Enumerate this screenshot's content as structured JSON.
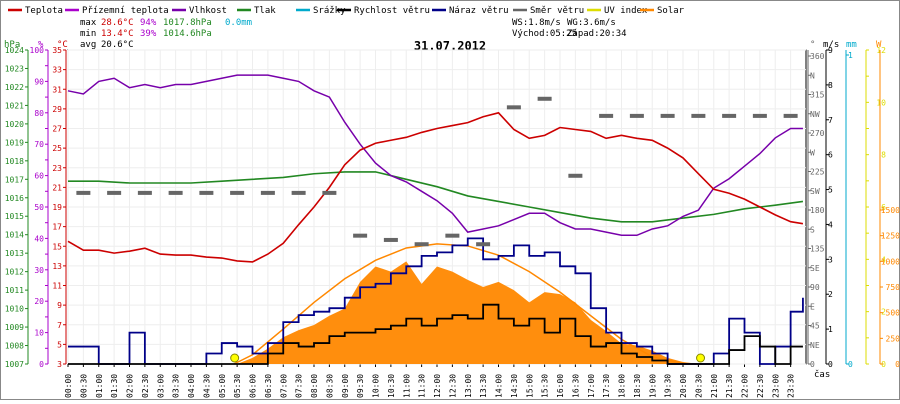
{
  "chart_data": {
    "type": "line",
    "title": "31.07.2012",
    "legend": [
      {
        "name": "Teplota",
        "color": "#cc0000"
      },
      {
        "name": "Přízemní teplota",
        "color": "#aa00cc"
      },
      {
        "name": "Vlhkost",
        "color": "#7700aa"
      },
      {
        "name": "Tlak",
        "color": "#228822"
      },
      {
        "name": "Srážky",
        "color": "#00aacc"
      },
      {
        "name": "Rychlost větru",
        "color": "#000000"
      },
      {
        "name": "Náraz větru",
        "color": "#000088"
      },
      {
        "name": "Směr větru",
        "color": "#666666"
      },
      {
        "name": "UV index",
        "color": "#dddd00"
      },
      {
        "name": "Solar",
        "color": "#ff8800"
      }
    ],
    "stats": {
      "max_label": "max",
      "max_temp": "28.6°C",
      "max_hum": "94%",
      "max_press": "1017.8hPa",
      "rain": "0.0mm",
      "min_label": "min",
      "min_temp": "13.4°C",
      "min_hum": "39%",
      "min_press": "1014.6hPa",
      "avg_label": "avg",
      "avg_temp": "20.6°C",
      "ws": "WS:1.8m/s",
      "wg": "WG:3.6m/s",
      "sunrise": "Východ:05:25",
      "sunset": "Západ:20:34"
    },
    "axes": {
      "hpa_unit": "hPa",
      "pct_unit": "%",
      "c_unit": "°C",
      "deg_unit": "°",
      "ms_unit": "m/s",
      "mm_unit": "mm",
      "w_unit": "W",
      "x_unit": "čas",
      "hpa_ticks": [
        "1024",
        "1023",
        "1022",
        "1021",
        "1020",
        "1019",
        "1018",
        "1017",
        "1016",
        "1015",
        "1014",
        "1013",
        "1012",
        "1011",
        "1010",
        "1009",
        "1008",
        "1007"
      ],
      "pct_ticks": [
        "100",
        "",
        "90",
        "",
        "80",
        "",
        "70",
        "",
        "60",
        "",
        "50",
        "",
        "40",
        "",
        "30",
        "",
        "20",
        "",
        "10",
        "",
        "0"
      ],
      "c_ticks": [
        "35",
        "33",
        "31",
        "29",
        "27",
        "25",
        "23",
        "21",
        "19",
        "17",
        "15",
        "13",
        "11",
        "9",
        "7",
        "5",
        "3"
      ],
      "dir_ticks": [
        "360",
        "N",
        "315",
        "NW",
        "270",
        "W",
        "225",
        "SW",
        "180",
        "S",
        "135",
        "SE",
        "90",
        "E",
        "45",
        "NE",
        "0"
      ],
      "ms_ticks": [
        "9",
        "8",
        "7",
        "6",
        "5",
        "4",
        "3",
        "2",
        "1",
        "0"
      ],
      "mm_ticks": [
        "1",
        "0"
      ],
      "uv_ticks": [
        "12",
        "",
        "10",
        "",
        "8",
        "",
        "6",
        "",
        "4",
        "",
        "2",
        "",
        "0"
      ],
      "w_ticks": [
        "1500",
        "1250",
        "1000",
        "750",
        "500",
        "250",
        "0"
      ],
      "x_ticks": [
        "00:00",
        "00:30",
        "01:00",
        "01:30",
        "02:00",
        "02:30",
        "03:00",
        "03:30",
        "04:00",
        "04:30",
        "05:00",
        "05:30",
        "06:00",
        "06:30",
        "07:00",
        "07:30",
        "08:00",
        "08:30",
        "09:00",
        "09:30",
        "10:00",
        "10:30",
        "11:00",
        "11:30",
        "12:00",
        "12:30",
        "13:00",
        "13:30",
        "14:00",
        "14:30",
        "15:00",
        "15:30",
        "16:00",
        "16:30",
        "17:00",
        "17:30",
        "18:00",
        "18:30",
        "19:00",
        "19:30",
        "20:00",
        "20:30",
        "21:00",
        "21:30",
        "22:00",
        "22:30",
        "23:00",
        "23:30"
      ],
      "temp_range": [
        3,
        35
      ],
      "hum_range": [
        0,
        100
      ],
      "press_range": [
        1007,
        1024
      ],
      "dir_range": [
        0,
        360
      ],
      "wind_range": [
        0,
        9
      ],
      "solar_range": [
        0,
        1500
      ]
    },
    "series": {
      "temperature": {
        "x": [
          0,
          0.5,
          1,
          1.5,
          2,
          2.5,
          3,
          3.5,
          4,
          4.5,
          5,
          5.5,
          6,
          6.5,
          7,
          7.5,
          8,
          8.5,
          9,
          9.5,
          10,
          10.5,
          11,
          11.5,
          12,
          12.5,
          13,
          13.5,
          14,
          14.5,
          15,
          15.5,
          16,
          16.5,
          17,
          17.5,
          18,
          18.5,
          19,
          19.5,
          20,
          20.5,
          21,
          21.5,
          22,
          22.5,
          23,
          23.5,
          23.9
        ],
        "values": [
          15.5,
          14.6,
          14.6,
          14.3,
          14.5,
          14.8,
          14.2,
          14.1,
          14.1,
          13.9,
          13.8,
          13.5,
          13.4,
          14.2,
          15.3,
          17.2,
          19.0,
          21.0,
          23.3,
          24.8,
          25.5,
          25.8,
          26.1,
          26.6,
          27.0,
          27.3,
          27.6,
          28.2,
          28.6,
          26.9,
          26.0,
          26.3,
          27.1,
          26.9,
          26.7,
          26.0,
          26.3,
          26.0,
          25.8,
          25.0,
          24.0,
          22.4,
          20.8,
          20.4,
          19.8,
          19.0,
          18.2,
          17.5,
          17.3
        ]
      },
      "humidity": {
        "x": [
          0,
          0.5,
          1,
          1.5,
          2,
          2.5,
          3,
          3.5,
          4,
          4.5,
          5,
          5.5,
          6,
          6.5,
          7,
          7.5,
          8,
          8.5,
          9,
          9.5,
          10,
          10.5,
          11,
          11.5,
          12,
          12.5,
          13,
          13.5,
          14,
          14.5,
          15,
          15.5,
          16,
          16.5,
          17,
          17.5,
          18,
          18.5,
          19,
          19.5,
          20,
          20.5,
          21,
          21.5,
          22,
          22.5,
          23,
          23.5,
          23.9
        ],
        "values": [
          87,
          86,
          90,
          91,
          88,
          89,
          88,
          89,
          89,
          90,
          91,
          92,
          92,
          92,
          91,
          90,
          87,
          85,
          77,
          70,
          64,
          60,
          58,
          55,
          52,
          48,
          42,
          43,
          44,
          46,
          48,
          48,
          45,
          43,
          43,
          42,
          41,
          41,
          43,
          44,
          47,
          49,
          56,
          59,
          63,
          67,
          72,
          75,
          75
        ]
      },
      "pressure": {
        "x": [
          0,
          1,
          2,
          3,
          4,
          5,
          6,
          7,
          8,
          9,
          10,
          11,
          12,
          13,
          14,
          15,
          16,
          17,
          18,
          19,
          20,
          21,
          22,
          23,
          23.9
        ],
        "values": [
          1016.9,
          1016.9,
          1016.8,
          1016.8,
          1016.8,
          1016.9,
          1017.0,
          1017.1,
          1017.3,
          1017.4,
          1017.4,
          1017.0,
          1016.6,
          1016.1,
          1015.8,
          1015.5,
          1015.2,
          1014.9,
          1014.7,
          1014.7,
          1014.9,
          1015.1,
          1015.4,
          1015.6,
          1015.8
        ]
      },
      "wind_speed": {
        "x": [
          0,
          1,
          2,
          3,
          4,
          5,
          5.5,
          6,
          6.5,
          7,
          7.5,
          8,
          8.5,
          9,
          9.5,
          10,
          10.5,
          11,
          11.5,
          12,
          12.5,
          13,
          13.5,
          14,
          14.5,
          15,
          15.5,
          16,
          16.5,
          17,
          17.5,
          18,
          18.5,
          19,
          19.5,
          20,
          20.5,
          21,
          21.5,
          22,
          22.5,
          23,
          23.5,
          23.9
        ],
        "values": [
          0,
          0,
          0,
          0,
          0,
          0,
          0,
          0,
          0.3,
          0.6,
          0.5,
          0.6,
          0.8,
          0.9,
          0.9,
          1.0,
          1.1,
          1.3,
          1.1,
          1.3,
          1.4,
          1.3,
          1.7,
          1.3,
          1.1,
          1.3,
          0.9,
          1.3,
          0.8,
          0.5,
          0.6,
          0.3,
          0.2,
          0.1,
          0,
          0,
          0,
          0,
          0.4,
          0.8,
          0.5,
          0,
          0.5,
          0.5
        ]
      },
      "wind_gust": {
        "x": [
          0,
          0.5,
          1,
          1.5,
          2,
          2.5,
          3,
          3.5,
          4,
          4.5,
          5,
          5.5,
          6,
          6.5,
          7,
          7.5,
          8,
          8.5,
          9,
          9.5,
          10,
          10.5,
          11,
          11.5,
          12,
          12.5,
          13,
          13.5,
          14,
          14.5,
          15,
          15.5,
          16,
          16.5,
          17,
          17.5,
          18,
          18.5,
          19,
          19.5,
          20,
          20.5,
          21,
          21.5,
          22,
          22.5,
          23,
          23.5,
          23.9
        ],
        "values": [
          0.5,
          0.5,
          0,
          0,
          0.9,
          0,
          0,
          0,
          0,
          0.3,
          0.6,
          0.5,
          0.3,
          0.6,
          1.2,
          1.4,
          1.5,
          1.6,
          1.9,
          2.2,
          2.3,
          2.6,
          2.8,
          3.1,
          3.2,
          3.4,
          3.6,
          3.0,
          3.1,
          3.4,
          3.1,
          3.2,
          2.8,
          2.6,
          1.6,
          0.9,
          0.6,
          0.5,
          0.3,
          0,
          0,
          0,
          0.3,
          1.3,
          0.9,
          0,
          0.5,
          1.5,
          1.9
        ]
      },
      "wind_direction": {
        "x": [
          0.5,
          1.5,
          2.5,
          3.5,
          4.5,
          5.5,
          6.5,
          7.5,
          8.5,
          9.5,
          10.5,
          11.5,
          12.5,
          13.5,
          14.5,
          15.5,
          16.5,
          17.5,
          18.5,
          19.5,
          20.5,
          21.5,
          22.5,
          23.5
        ],
        "values": [
          200,
          200,
          200,
          200,
          200,
          200,
          200,
          200,
          200,
          150,
          145,
          140,
          150,
          140,
          300,
          310,
          220,
          290,
          290,
          290,
          290,
          290,
          290,
          290
        ]
      },
      "solar": {
        "x": [
          5.5,
          6,
          6.5,
          7,
          7.5,
          8,
          8.5,
          9,
          9.5,
          10,
          10.5,
          11,
          11.5,
          12,
          12.5,
          13,
          13.5,
          14,
          14.5,
          15,
          15.5,
          16,
          16.5,
          17,
          17.5,
          18,
          18.5,
          19,
          19.5,
          20,
          20.5
        ],
        "values": [
          0,
          60,
          150,
          260,
          330,
          380,
          470,
          540,
          800,
          950,
          900,
          1000,
          780,
          950,
          900,
          820,
          750,
          800,
          720,
          600,
          700,
          680,
          600,
          430,
          320,
          200,
          180,
          130,
          60,
          20,
          0
        ]
      },
      "solar_theoretical": {
        "x": [
          5.4,
          6,
          7,
          8,
          9,
          10,
          11,
          12,
          13,
          14,
          15,
          16,
          17,
          18,
          19,
          20,
          20.6
        ],
        "values": [
          0,
          90,
          340,
          600,
          830,
          1010,
          1130,
          1170,
          1150,
          1060,
          900,
          700,
          470,
          240,
          70,
          5,
          0
        ]
      }
    }
  }
}
